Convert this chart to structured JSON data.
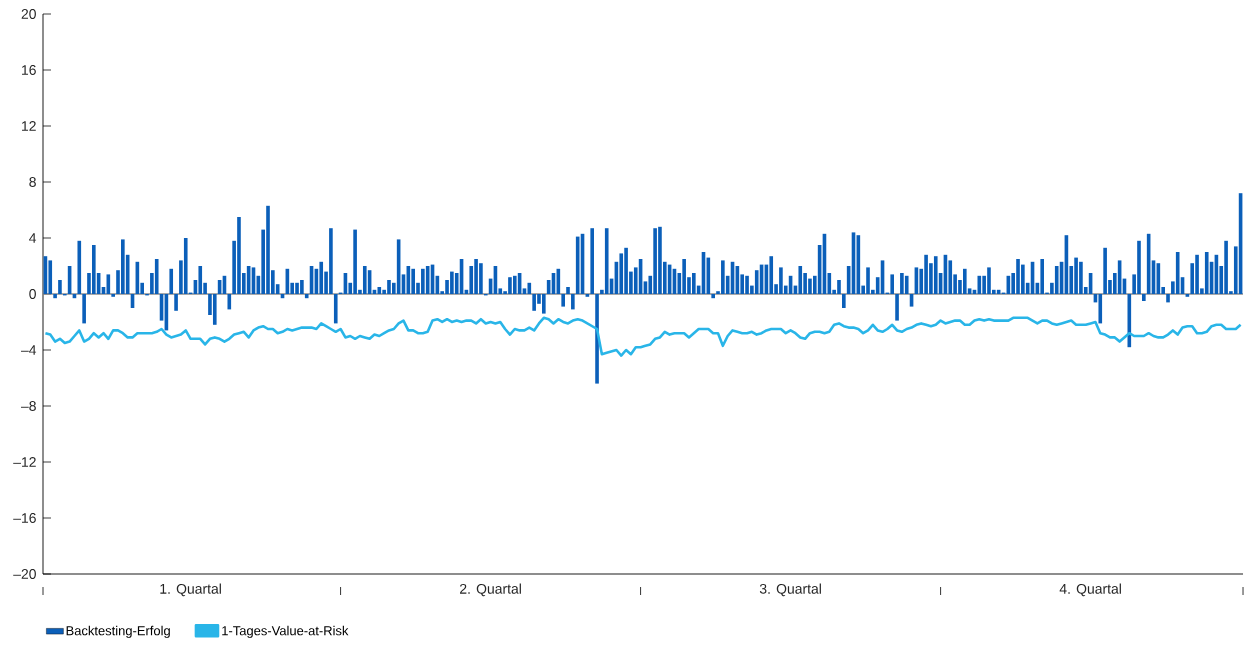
{
  "chart_data": {
    "type": "bar",
    "categories": [
      null,
      null,
      null,
      null,
      null,
      null,
      null,
      null,
      null,
      null,
      null,
      null,
      null,
      null,
      null,
      null,
      null,
      null,
      null,
      null,
      null,
      null,
      null,
      null,
      null,
      null,
      null,
      null,
      null,
      null,
      "1. Quartal",
      null,
      null,
      null,
      null,
      null,
      null,
      null,
      null,
      null,
      null,
      null,
      null,
      null,
      null,
      null,
      null,
      null,
      null,
      null,
      null,
      null,
      null,
      null,
      null,
      null,
      null,
      null,
      null,
      null,
      null,
      null,
      null,
      null,
      null,
      null,
      null,
      null,
      null,
      null,
      null,
      null,
      null,
      null,
      null,
      null,
      null,
      null,
      null,
      null,
      null,
      null,
      null,
      null,
      null,
      null,
      null,
      null,
      null,
      null,
      null,
      null,
      "2. Quartal",
      null,
      null,
      null,
      null,
      null,
      null,
      null,
      null,
      null,
      null,
      null,
      null,
      null,
      null,
      null,
      null,
      null,
      null,
      null,
      null,
      null,
      null,
      null,
      null,
      null,
      null,
      null,
      null,
      null,
      null,
      null,
      null,
      null,
      null,
      null,
      null,
      null,
      null,
      null,
      null,
      null,
      null,
      null,
      null,
      null,
      null,
      null,
      null,
      null,
      null,
      null,
      null,
      null,
      null,
      null,
      null,
      null,
      null,
      null,
      null,
      null,
      "3. Quartal",
      null,
      null,
      null,
      null,
      null,
      null,
      null,
      null,
      null,
      null,
      null,
      null,
      null,
      null,
      null,
      null,
      null,
      null,
      null,
      null,
      null,
      null,
      null,
      null,
      null,
      null,
      null,
      null,
      null,
      null,
      null,
      null,
      null,
      null,
      null,
      null,
      null,
      null,
      null,
      null,
      null,
      null,
      null,
      null,
      null,
      null,
      null,
      null,
      null,
      null,
      null,
      null,
      null,
      null,
      null,
      null,
      null,
      null,
      null,
      null,
      null,
      "4. Quartal",
      null,
      null,
      null,
      null,
      null,
      null,
      null,
      null,
      null,
      null,
      null,
      null,
      null,
      null,
      null,
      null,
      null,
      null,
      null,
      null,
      null,
      null,
      null,
      null,
      null,
      null,
      null,
      null,
      null,
      null,
      null
    ],
    "series": [
      {
        "name": "Backtesting-Erfolg",
        "color": "#0b5fb9",
        "values": [
          2.7,
          2.4,
          -0.3,
          1.0,
          -0.1,
          2.0,
          -0.3,
          3.8,
          -2.1,
          1.5,
          3.5,
          1.5,
          0.5,
          1.4,
          -0.2,
          1.7,
          3.9,
          2.8,
          -1.0,
          2.3,
          0.8,
          -0.1,
          1.5,
          2.5,
          -1.9,
          -2.6,
          1.8,
          -1.2,
          2.4,
          4.0,
          0.1,
          1.0,
          2.0,
          0.8,
          -1.5,
          -2.2,
          1.0,
          1.3,
          -1.1,
          3.8,
          5.5,
          1.5,
          2.0,
          1.9,
          1.3,
          4.6,
          6.3,
          1.7,
          0.7,
          -0.3,
          1.8,
          0.8,
          0.8,
          1.0,
          -0.3,
          2.0,
          1.8,
          2.3,
          1.6,
          4.7,
          -2.1,
          0.1,
          1.5,
          0.8,
          4.6,
          0.3,
          2.0,
          1.7,
          0.3,
          0.5,
          0.3,
          1.0,
          0.8,
          3.9,
          1.4,
          2.0,
          1.8,
          0.8,
          1.8,
          2.0,
          2.1,
          1.3,
          0.2,
          1.0,
          1.6,
          1.5,
          2.5,
          0.3,
          2.0,
          2.5,
          2.2,
          -0.1,
          1.1,
          2.0,
          0.4,
          0.2,
          1.2,
          1.3,
          1.5,
          0.4,
          0.8,
          -1.2,
          -0.7,
          -1.4,
          1.0,
          1.5,
          1.8,
          -0.9,
          0.5,
          -1.1,
          4.1,
          4.3,
          -0.2,
          4.7,
          -6.4,
          0.3,
          4.7,
          1.1,
          2.3,
          2.9,
          3.3,
          1.6,
          1.9,
          2.5,
          0.9,
          1.3,
          4.7,
          4.8,
          2.3,
          2.1,
          1.8,
          1.5,
          2.5,
          1.2,
          1.5,
          0.6,
          3.0,
          2.6,
          -0.3,
          0.2,
          2.4,
          1.3,
          2.3,
          2.0,
          1.4,
          1.3,
          0.6,
          1.7,
          2.1,
          2.1,
          2.7,
          0.7,
          1.9,
          0.6,
          1.3,
          0.6,
          2.0,
          1.5,
          1.1,
          1.3,
          3.5,
          4.3,
          1.5,
          0.3,
          1.0,
          -1.0,
          2.0,
          4.4,
          4.2,
          0.6,
          1.9,
          0.3,
          1.2,
          2.4,
          0.1,
          1.4,
          -1.9,
          1.5,
          1.3,
          -0.9,
          1.9,
          1.8,
          2.8,
          2.2,
          2.7,
          1.5,
          2.8,
          2.4,
          1.4,
          1.0,
          1.8,
          0.4,
          0.3,
          1.3,
          1.3,
          1.9,
          0.3,
          0.3,
          0.1,
          1.3,
          1.5,
          2.5,
          2.1,
          0.8,
          2.3,
          0.8,
          2.5,
          0.1,
          0.8,
          2.0,
          2.3,
          4.2,
          2.0,
          2.6,
          2.3,
          0.5,
          1.5,
          -0.6,
          -2.1,
          3.3,
          1.0,
          1.5,
          2.4,
          1.1,
          -3.8,
          1.4,
          3.8,
          -0.5,
          4.3,
          2.4,
          2.2,
          0.5,
          -0.6,
          0.9,
          3.0,
          1.2,
          -0.2,
          2.2,
          2.8,
          0.4,
          3.0,
          2.3,
          2.8,
          2.0,
          3.8,
          0.2,
          3.4,
          7.2
        ]
      },
      {
        "name": "1-Tages-Value-at-Risk",
        "type": "line",
        "color": "#29b5e8",
        "values": [
          -2.8,
          -2.9,
          -3.4,
          -3.2,
          -3.5,
          -3.4,
          -3.0,
          -2.6,
          -3.4,
          -3.2,
          -2.8,
          -3.1,
          -2.8,
          -3.2,
          -2.6,
          -2.6,
          -2.8,
          -3.1,
          -3.1,
          -2.8,
          -2.8,
          -2.8,
          -2.8,
          -2.7,
          -2.5,
          -2.9,
          -3.1,
          -3.0,
          -2.9,
          -2.6,
          -3.2,
          -3.2,
          -3.2,
          -3.6,
          -3.2,
          -3.1,
          -3.2,
          -3.4,
          -3.2,
          -2.9,
          -2.8,
          -2.7,
          -3.1,
          -2.6,
          -2.4,
          -2.3,
          -2.5,
          -2.5,
          -2.8,
          -2.7,
          -2.5,
          -2.6,
          -2.5,
          -2.4,
          -2.4,
          -2.4,
          -2.5,
          -2.1,
          -2.3,
          -2.5,
          -2.7,
          -2.5,
          -3.1,
          -3.0,
          -3.2,
          -3.0,
          -3.1,
          -3.2,
          -2.9,
          -3.0,
          -2.8,
          -2.6,
          -2.5,
          -2.1,
          -1.9,
          -2.6,
          -2.6,
          -2.8,
          -2.8,
          -2.7,
          -1.9,
          -1.8,
          -2.0,
          -1.8,
          -2.0,
          -1.9,
          -2.0,
          -1.9,
          -1.9,
          -2.1,
          -1.8,
          -2.1,
          -2.0,
          -2.1,
          -2.0,
          -2.5,
          -2.9,
          -2.5,
          -2.6,
          -2.6,
          -2.4,
          -2.6,
          -2.1,
          -1.7,
          -1.8,
          -2.1,
          -1.8,
          -2.0,
          -2.1,
          -1.9,
          -1.8,
          -1.9,
          -2.1,
          -2.3,
          -2.5,
          -4.3,
          -4.2,
          -4.1,
          -4.0,
          -4.4,
          -4.0,
          -4.3,
          -3.8,
          -3.8,
          -3.7,
          -3.6,
          -3.2,
          -3.1,
          -2.7,
          -2.9,
          -2.8,
          -2.8,
          -2.8,
          -3.1,
          -2.8,
          -2.5,
          -2.5,
          -2.5,
          -2.8,
          -2.8,
          -3.7,
          -3.0,
          -2.6,
          -2.7,
          -2.8,
          -2.8,
          -2.7,
          -2.9,
          -2.8,
          -2.6,
          -2.5,
          -2.5,
          -2.5,
          -2.8,
          -2.6,
          -2.8,
          -3.1,
          -3.2,
          -2.8,
          -2.7,
          -2.7,
          -2.8,
          -2.7,
          -2.2,
          -2.1,
          -2.3,
          -2.4,
          -2.4,
          -2.5,
          -2.8,
          -2.6,
          -2.2,
          -2.6,
          -2.7,
          -2.5,
          -2.2,
          -2.6,
          -2.7,
          -2.5,
          -2.4,
          -2.2,
          -2.1,
          -2.2,
          -2.3,
          -2.2,
          -1.9,
          -2.1,
          -2.0,
          -1.9,
          -1.9,
          -2.2,
          -2.2,
          -1.9,
          -1.8,
          -1.9,
          -1.8,
          -1.9,
          -1.9,
          -1.9,
          -1.9,
          -1.7,
          -1.7,
          -1.7,
          -1.7,
          -1.9,
          -2.1,
          -1.9,
          -1.9,
          -2.1,
          -2.2,
          -2.1,
          -2.0,
          -1.9,
          -2.2,
          -2.2,
          -2.2,
          -2.1,
          -2.0,
          -2.8,
          -2.9,
          -3.1,
          -3.1,
          -3.4,
          -3.1,
          -2.8,
          -3.0,
          -3.0,
          -3.0,
          -2.8,
          -3.0,
          -3.1,
          -3.1,
          -2.9,
          -2.6,
          -2.9,
          -2.4,
          -2.3,
          -2.3,
          -2.8,
          -2.8,
          -2.7,
          -2.3,
          -2.2,
          -2.2,
          -2.5,
          -2.5,
          -2.5,
          -2.2
        ]
      }
    ],
    "ylim": [
      -20,
      20
    ],
    "yticks": [
      {
        "value": -20,
        "label": "–20"
      },
      {
        "value": -16,
        "label": "–16"
      },
      {
        "value": -12,
        "label": "–12"
      },
      {
        "value": -8,
        "label": "–8"
      },
      {
        "value": -4,
        "label": "–4"
      },
      0,
      4,
      8,
      12,
      16,
      20
    ],
    "ref_lines": [
      {
        "axis": "y",
        "value": 0,
        "color": "#8c8c8c"
      }
    ],
    "legend": "bottom left"
  }
}
